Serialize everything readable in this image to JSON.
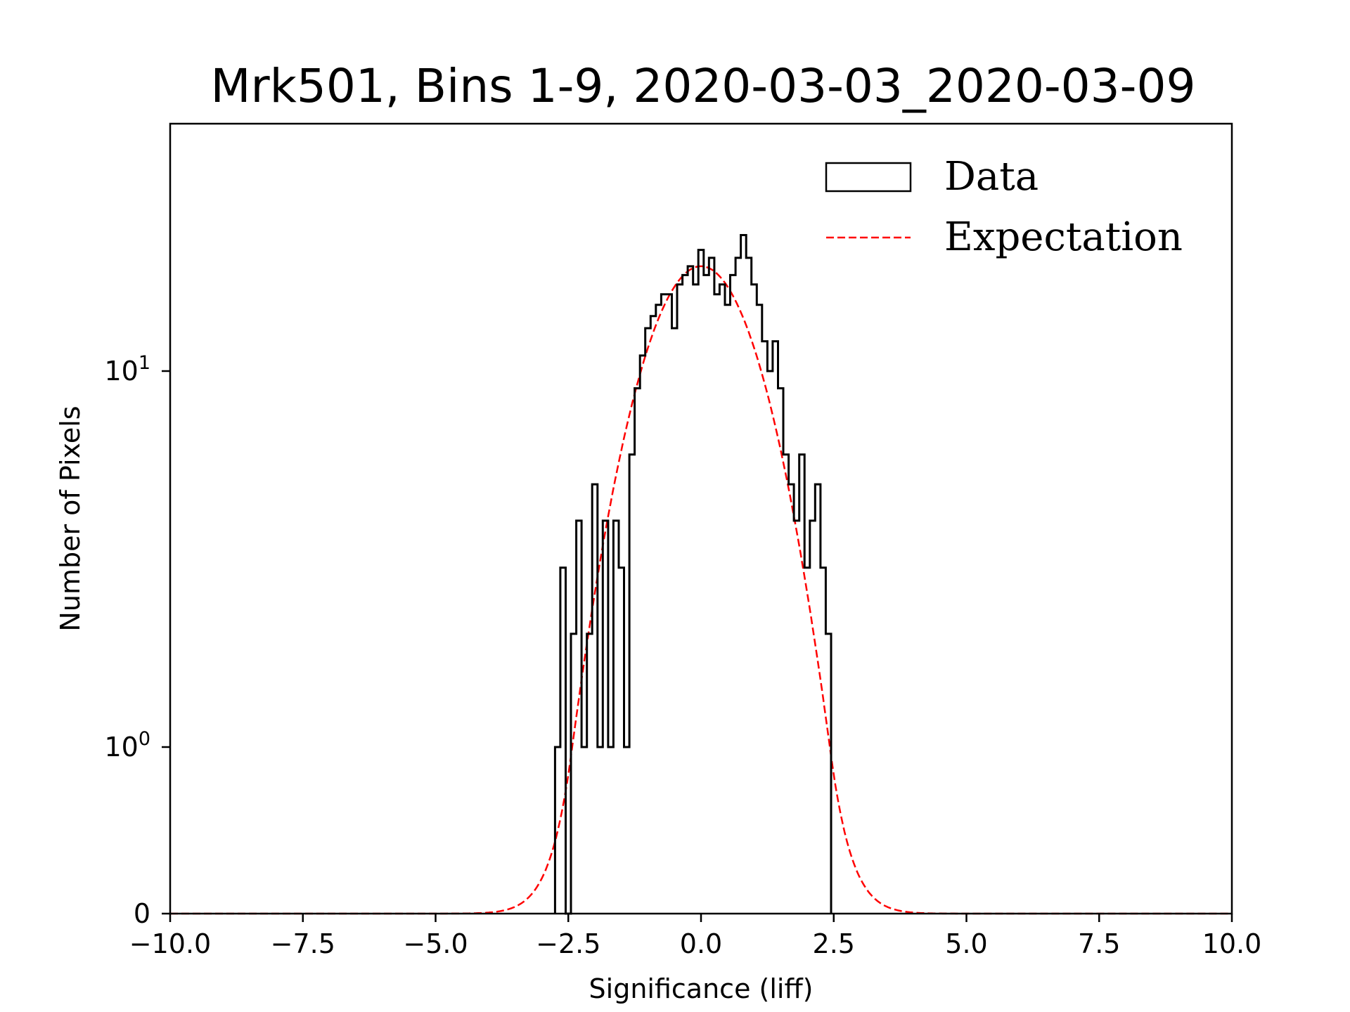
{
  "chart_data": {
    "type": "histogram",
    "title": "Mrk501, Bins 1-9, 2020-03-03_2020-03-09",
    "xlabel": "Significance (liff)",
    "ylabel": "Number of Pixels",
    "xlim": [
      -10.0,
      10.0
    ],
    "yscale": "symlog",
    "x_ticks": [
      {
        "value": -10.0,
        "label": "−10.0"
      },
      {
        "value": -7.5,
        "label": "−7.5"
      },
      {
        "value": -5.0,
        "label": "−5.0"
      },
      {
        "value": -2.5,
        "label": "−2.5"
      },
      {
        "value": 0.0,
        "label": "0.0"
      },
      {
        "value": 2.5,
        "label": "2.5"
      },
      {
        "value": 5.0,
        "label": "5.0"
      },
      {
        "value": 7.5,
        "label": "7.5"
      },
      {
        "value": 10.0,
        "label": "10.0"
      }
    ],
    "y_ticks": [
      {
        "value": 0,
        "base": "0",
        "exp": ""
      },
      {
        "value": 1,
        "base": "10",
        "exp": "0"
      },
      {
        "value": 10,
        "base": "10",
        "exp": "1"
      }
    ],
    "legend": {
      "location": "top-right",
      "entries": [
        {
          "label": "Data",
          "style": "step",
          "color": "#000000"
        },
        {
          "label": "Expectation",
          "style": "dashed",
          "color": "#ff0000"
        }
      ]
    },
    "series": [
      {
        "name": "Data",
        "kind": "step-histogram",
        "color": "#000000",
        "bin_edges": [
          -2.75,
          -2.65,
          -2.55,
          -2.45,
          -2.35,
          -2.25,
          -2.15,
          -2.05,
          -1.95,
          -1.85,
          -1.75,
          -1.65,
          -1.55,
          -1.45,
          -1.35,
          -1.25,
          -1.15,
          -1.05,
          -0.95,
          -0.85,
          -0.75,
          -0.65,
          -0.55,
          -0.45,
          -0.35,
          -0.25,
          -0.15,
          -0.05,
          0.05,
          0.15,
          0.25,
          0.35,
          0.45,
          0.55,
          0.65,
          0.75,
          0.85,
          0.95,
          1.05,
          1.15,
          1.25,
          1.35,
          1.45,
          1.55,
          1.65,
          1.75,
          1.85,
          1.95,
          2.05,
          2.15,
          2.25,
          2.35,
          2.45
        ],
        "counts": [
          1,
          3,
          0,
          2,
          4,
          1,
          2,
          5,
          1,
          4,
          1,
          4,
          3,
          1,
          6,
          9,
          11,
          13,
          14,
          15,
          16,
          16,
          13,
          17,
          18,
          19,
          17,
          21,
          18,
          20,
          16,
          17,
          15,
          18,
          20,
          23,
          20,
          17,
          15,
          12,
          10,
          12,
          9,
          6,
          5,
          4,
          6,
          3,
          4,
          5,
          3,
          2
        ]
      },
      {
        "name": "Expectation",
        "kind": "gaussian",
        "color": "#ff0000",
        "mean": 0.0,
        "sigma": 1.0,
        "peak": 19.0
      }
    ]
  }
}
